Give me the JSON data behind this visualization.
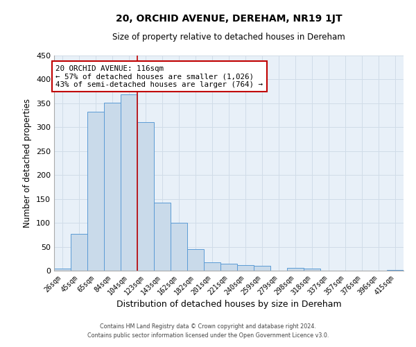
{
  "title": "20, ORCHID AVENUE, DEREHAM, NR19 1JT",
  "subtitle": "Size of property relative to detached houses in Dereham",
  "xlabel": "Distribution of detached houses by size in Dereham",
  "ylabel": "Number of detached properties",
  "bar_labels": [
    "26sqm",
    "45sqm",
    "65sqm",
    "84sqm",
    "104sqm",
    "123sqm",
    "143sqm",
    "162sqm",
    "182sqm",
    "201sqm",
    "221sqm",
    "240sqm",
    "259sqm",
    "279sqm",
    "298sqm",
    "318sqm",
    "337sqm",
    "357sqm",
    "376sqm",
    "396sqm",
    "415sqm"
  ],
  "bar_values": [
    5,
    77,
    333,
    352,
    368,
    311,
    142,
    100,
    45,
    18,
    15,
    12,
    10,
    0,
    6,
    5,
    0,
    0,
    0,
    0,
    2
  ],
  "bar_color": "#c9daea",
  "bar_edge_color": "#5b9bd5",
  "grid_color": "#d0dce8",
  "marker_line_color": "#c00000",
  "annotation_title": "20 ORCHID AVENUE: 116sqm",
  "annotation_line1": "← 57% of detached houses are smaller (1,026)",
  "annotation_line2": "43% of semi-detached houses are larger (764) →",
  "annotation_box_color": "#c00000",
  "ylim": [
    0,
    450
  ],
  "yticks": [
    0,
    50,
    100,
    150,
    200,
    250,
    300,
    350,
    400,
    450
  ],
  "footer_line1": "Contains HM Land Registry data © Crown copyright and database right 2024.",
  "footer_line2": "Contains public sector information licensed under the Open Government Licence v3.0.",
  "bg_color": "#e8f0f8"
}
